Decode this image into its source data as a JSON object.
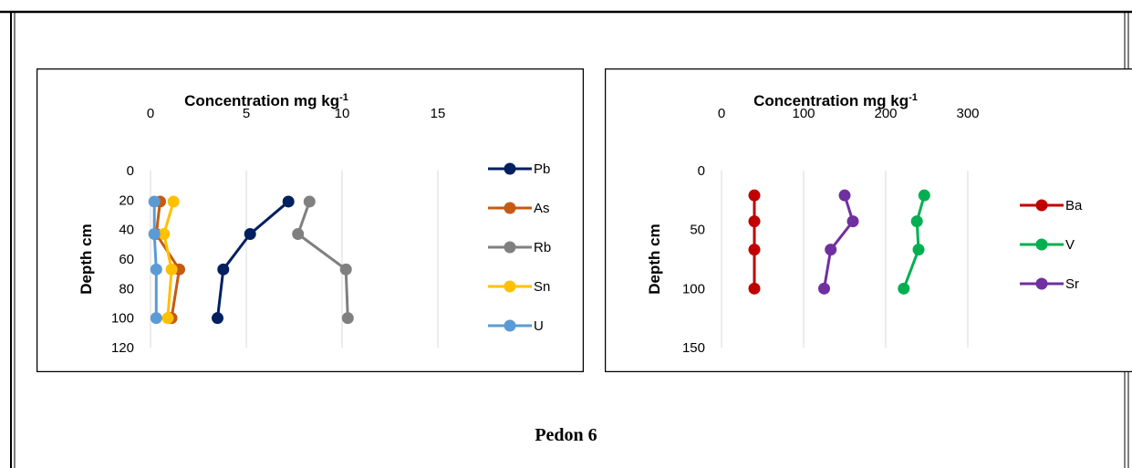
{
  "caption": "Pedon 6",
  "chart_data": [
    {
      "type": "line",
      "title": "Concentration mg kg",
      "title_superscript": "-1",
      "ylabel": "Depth cm",
      "xlim": [
        0,
        15
      ],
      "xticks": [
        0,
        5,
        10,
        15
      ],
      "ylim": [
        0,
        120
      ],
      "yticks": [
        0,
        20,
        40,
        60,
        80,
        100,
        120
      ],
      "y_reversed": true,
      "x_axis_position": "top",
      "grid": "vertical",
      "legend": "right",
      "series": [
        {
          "name": "Pb",
          "color": "#002060",
          "points": [
            {
              "x": 7.2,
              "y": 21
            },
            {
              "x": 5.2,
              "y": 43
            },
            {
              "x": 3.8,
              "y": 67
            },
            {
              "x": 3.5,
              "y": 100
            }
          ]
        },
        {
          "name": "As",
          "color": "#c55a11",
          "points": [
            {
              "x": 0.5,
              "y": 21
            },
            {
              "x": 0.3,
              "y": 43
            },
            {
              "x": 1.5,
              "y": 67
            },
            {
              "x": 1.1,
              "y": 100
            }
          ]
        },
        {
          "name": "Rb",
          "color": "#808080",
          "points": [
            {
              "x": 8.3,
              "y": 21
            },
            {
              "x": 7.7,
              "y": 43
            },
            {
              "x": 10.2,
              "y": 67
            },
            {
              "x": 10.3,
              "y": 100
            }
          ]
        },
        {
          "name": "Sn",
          "color": "#ffc000",
          "points": [
            {
              "x": 1.2,
              "y": 21
            },
            {
              "x": 0.7,
              "y": 43
            },
            {
              "x": 1.1,
              "y": 67
            },
            {
              "x": 0.9,
              "y": 100
            }
          ]
        },
        {
          "name": "U",
          "color": "#5b9bd5",
          "points": [
            {
              "x": 0.2,
              "y": 21
            },
            {
              "x": 0.2,
              "y": 43
            },
            {
              "x": 0.3,
              "y": 67
            },
            {
              "x": 0.3,
              "y": 100
            }
          ]
        }
      ]
    },
    {
      "type": "line",
      "title": "Concentration mg kg",
      "title_superscript": "-1",
      "ylabel": "Depth cm",
      "xlim": [
        0,
        300
      ],
      "xticks": [
        0,
        100,
        200,
        300
      ],
      "ylim": [
        0,
        150
      ],
      "yticks": [
        0,
        50,
        100,
        150
      ],
      "y_reversed": true,
      "x_axis_position": "top",
      "grid": "vertical",
      "legend": "right",
      "series": [
        {
          "name": "Ba",
          "color": "#c00000",
          "points": [
            {
              "x": 40,
              "y": 21
            },
            {
              "x": 40,
              "y": 43
            },
            {
              "x": 40,
              "y": 67
            },
            {
              "x": 40,
              "y": 100
            }
          ]
        },
        {
          "name": "V",
          "color": "#00b050",
          "points": [
            {
              "x": 247,
              "y": 21
            },
            {
              "x": 238,
              "y": 43
            },
            {
              "x": 240,
              "y": 67
            },
            {
              "x": 222,
              "y": 100
            }
          ]
        },
        {
          "name": "Sr",
          "color": "#7030a0",
          "points": [
            {
              "x": 150,
              "y": 21
            },
            {
              "x": 160,
              "y": 43
            },
            {
              "x": 133,
              "y": 67
            },
            {
              "x": 125,
              "y": 100
            }
          ]
        }
      ]
    }
  ]
}
